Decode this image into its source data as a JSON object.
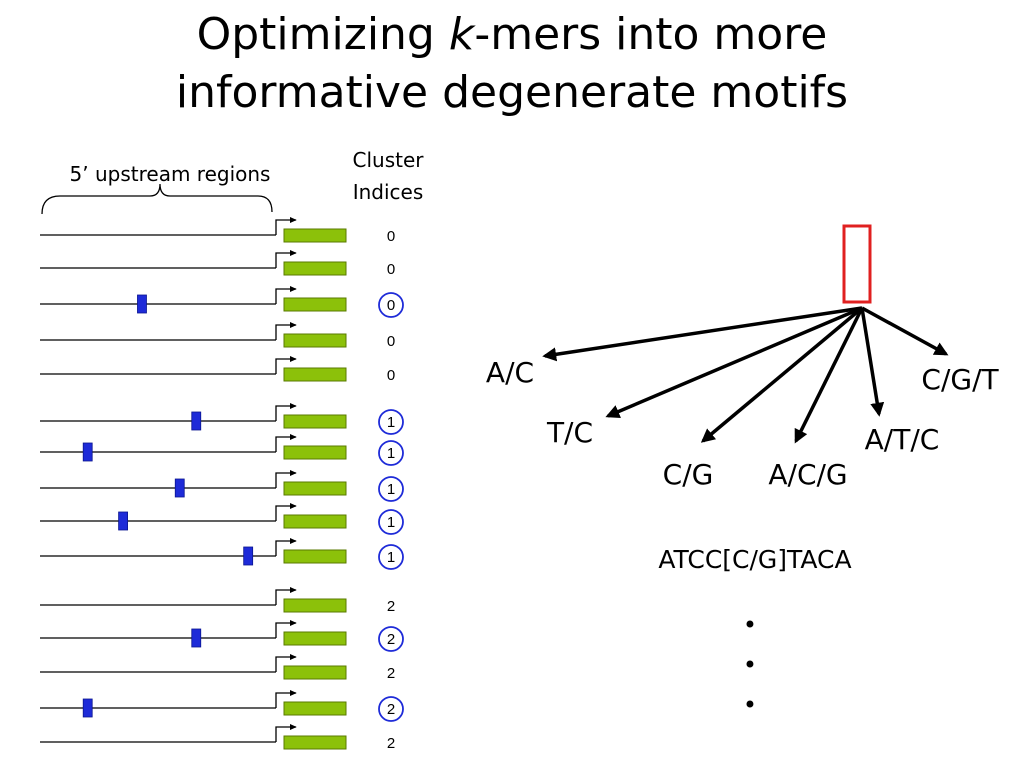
{
  "slide": {
    "title_line1_prefix": "Optimizing ",
    "title_k": "k",
    "title_line1_suffix": "-mers into more",
    "title_line2": "informative degenerate motifs"
  },
  "left_panel": {
    "upstream_label": "5’ upstream regions",
    "cluster_header_line1": "Cluster",
    "cluster_header_line2": "Indices",
    "colors": {
      "gene": "#8CC10A",
      "gene_stroke": "#5a7a00",
      "motif": "#1E2BD8",
      "circle": "#1E2BD8",
      "line": "#000000"
    },
    "rows": [
      {
        "index": "0",
        "circled": false,
        "motif_pos": null
      },
      {
        "index": "0",
        "circled": false,
        "motif_pos": null
      },
      {
        "index": "0",
        "circled": true,
        "motif_pos": 0.43
      },
      {
        "index": "0",
        "circled": false,
        "motif_pos": null
      },
      {
        "index": "0",
        "circled": false,
        "motif_pos": null
      },
      {
        "index": "1",
        "circled": true,
        "motif_pos": 0.66
      },
      {
        "index": "1",
        "circled": true,
        "motif_pos": 0.2
      },
      {
        "index": "1",
        "circled": true,
        "motif_pos": 0.59
      },
      {
        "index": "1",
        "circled": true,
        "motif_pos": 0.35
      },
      {
        "index": "1",
        "circled": true,
        "motif_pos": 0.88
      },
      {
        "index": "2",
        "circled": false,
        "motif_pos": null
      },
      {
        "index": "2",
        "circled": true,
        "motif_pos": 0.66
      },
      {
        "index": "2",
        "circled": false,
        "motif_pos": null
      },
      {
        "index": "2",
        "circled": true,
        "motif_pos": 0.2
      },
      {
        "index": "2",
        "circled": false,
        "motif_pos": null
      }
    ]
  },
  "tree": {
    "root_color": "#E02020",
    "branches": [
      "A/C",
      "T/C",
      "C/G",
      "A/C/G",
      "A/T/C",
      "C/G/T"
    ],
    "consensus": "ATCC[C/G]TACA",
    "ellipsis": [
      "•",
      "•",
      "•"
    ]
  }
}
